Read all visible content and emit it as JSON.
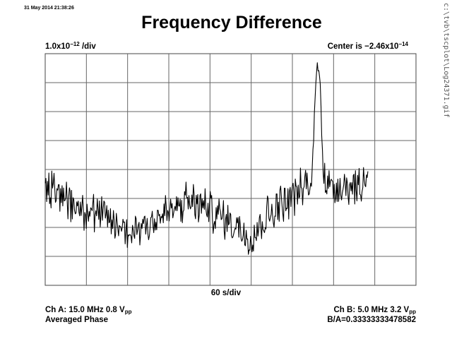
{
  "header": {
    "timestamp": "31 May 2014 21:38:26",
    "title": "Frequency Difference",
    "side_path": "c:\\tvb\\tscplot\\Log24371.gif"
  },
  "scale": {
    "prefix": "1.0x10",
    "exp": "−12",
    "suffix": " /div"
  },
  "center": {
    "prefix": "Center is −2.46x10",
    "exp": "−14"
  },
  "x_axis": {
    "label": "60 s/div"
  },
  "footer": {
    "ch_a": {
      "text": "Ch A: 15.0 MHz 0.8 V",
      "unit_sub": "pp"
    },
    "mode": "Averaged Phase",
    "ch_b": {
      "text": "Ch B: 5.0 MHz 3.2 V",
      "unit_sub": "pp"
    },
    "ratio": "B/A=0.33333333478582"
  },
  "chart_data": {
    "type": "line",
    "title": "Frequency Difference",
    "xlabel": "60 s/div",
    "ylabel": "1.0x10^-12 /div",
    "grid": true,
    "x_divisions": 9,
    "y_divisions": 8,
    "x_range": [
      0,
      540
    ],
    "y_range_divs": [
      -4,
      4
    ],
    "color": "#000000",
    "series": [
      {
        "x_unit": "s",
        "y_unit": "divisions",
        "x": [
          0,
          30,
          60,
          90,
          120,
          150,
          180,
          210,
          240,
          270,
          300,
          330,
          360,
          380,
          385,
          388,
          392,
          396,
          400,
          405,
          410,
          440,
          460,
          465,
          470
        ],
        "y": [
          -0.6,
          -1.0,
          -1.4,
          -1.7,
          -2.2,
          -1.8,
          -1.5,
          -1.1,
          -1.4,
          -1.8,
          -2.3,
          -1.4,
          -0.9,
          -0.6,
          -0.5,
          -0.7,
          2.0,
          3.6,
          3.3,
          0.2,
          -0.6,
          -0.5,
          -0.6,
          -0.3,
          -0.2
        ]
      }
    ]
  }
}
